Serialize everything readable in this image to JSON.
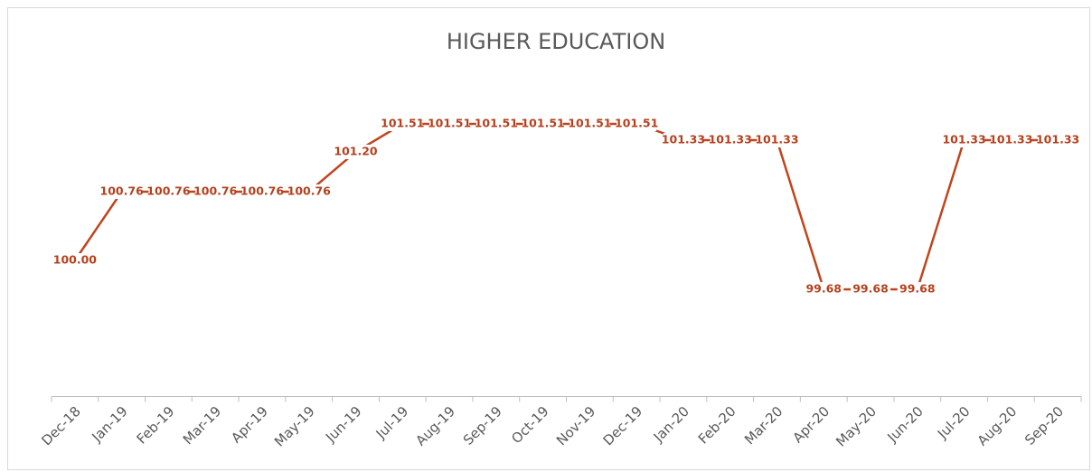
{
  "chart_data": {
    "type": "line",
    "title": "HIGHER EDUCATION",
    "categories": [
      "Dec-18",
      "Jan-19",
      "Feb-19",
      "Mar-19",
      "Apr-19",
      "May-19",
      "Jun-19",
      "Jul-19",
      "Aug-19",
      "Sep-19",
      "Oct-19",
      "Nov-19",
      "Dec-19",
      "Jan-20",
      "Feb-20",
      "Mar-20",
      "Apr-20",
      "May-20",
      "Jun-20",
      "Jul-20",
      "Aug-20",
      "Sep-20"
    ],
    "values": [
      100.0,
      100.76,
      100.76,
      100.76,
      100.76,
      100.76,
      101.2,
      101.51,
      101.51,
      101.51,
      101.51,
      101.51,
      101.51,
      101.33,
      101.33,
      101.33,
      99.68,
      99.68,
      99.68,
      101.33,
      101.33,
      101.33
    ],
    "value_labels": [
      "100.00",
      "100.76",
      "100.76",
      "100.76",
      "100.76",
      "100.76",
      "101.20",
      "101.51",
      "101.51",
      "101.51",
      "101.51",
      "101.51",
      "101.51",
      "101.33",
      "101.33",
      "101.33",
      "99.68",
      "99.68",
      "99.68",
      "101.33",
      "101.33",
      "101.33"
    ],
    "color": "#c0441c"
  }
}
